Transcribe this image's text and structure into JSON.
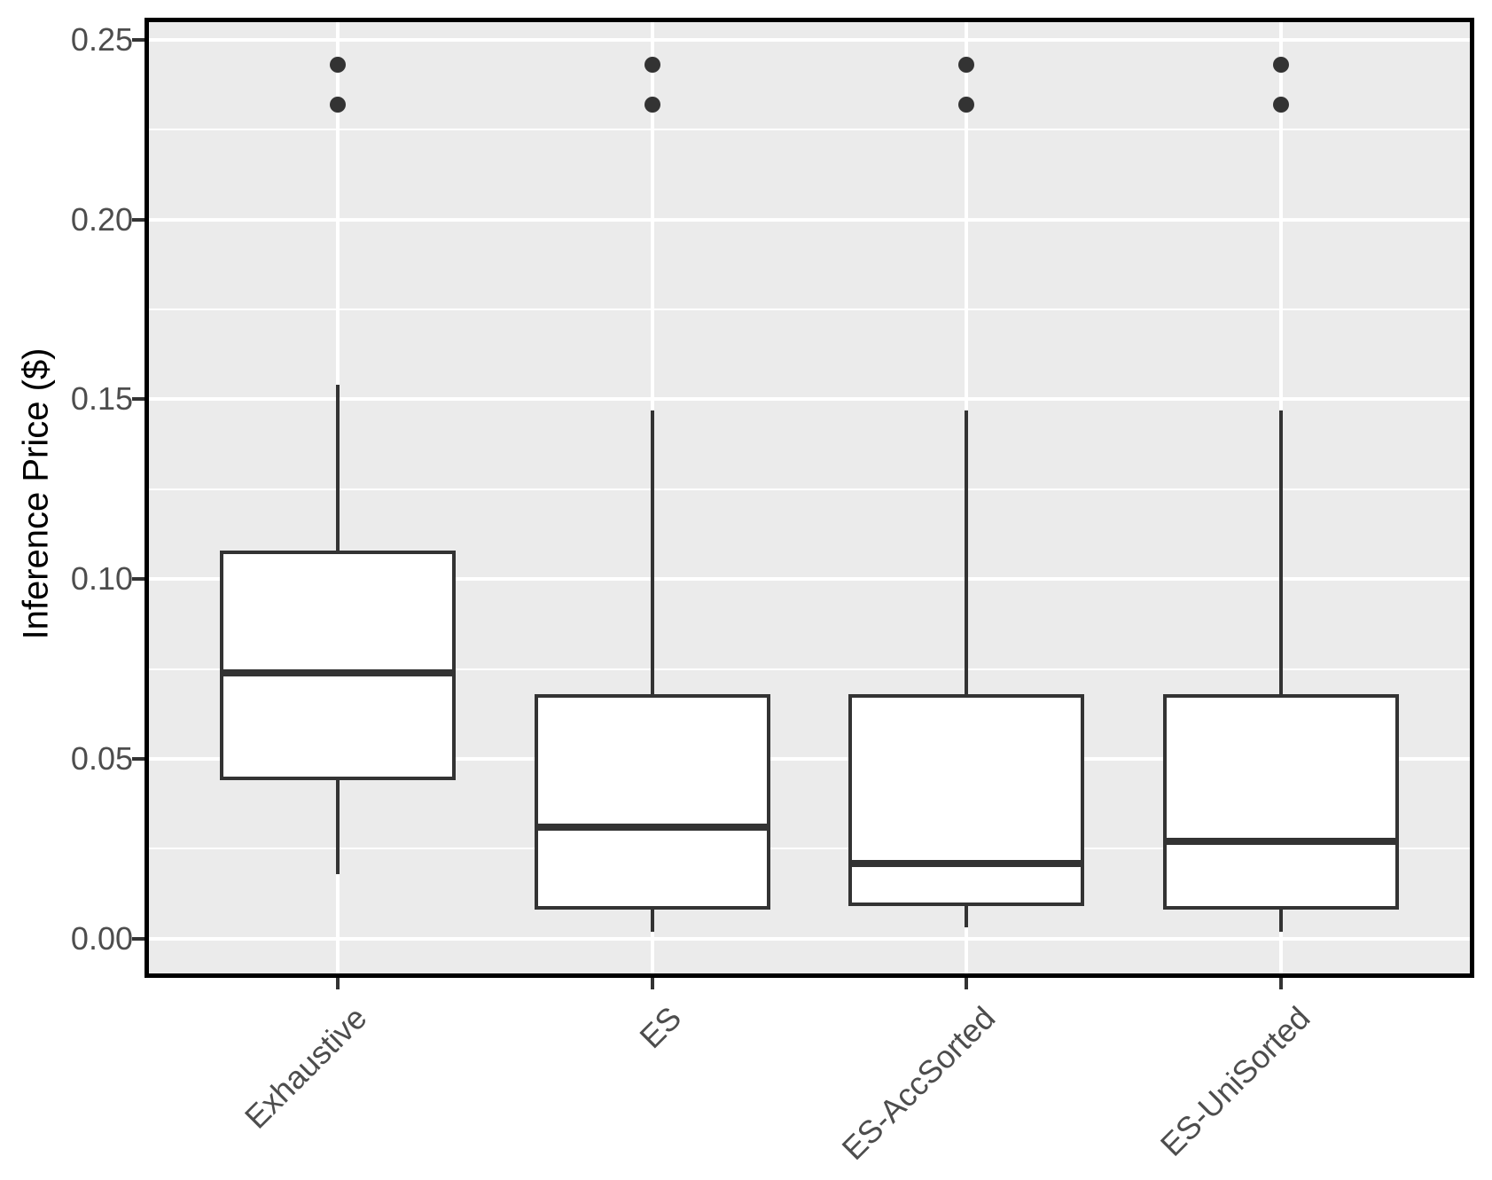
{
  "chart_data": {
    "type": "boxplot",
    "title": "",
    "xlabel": "",
    "ylabel": "Inference Price ($)",
    "categories": [
      "Exhaustive",
      "ES",
      "ES-AccSorted",
      "ES-UniSorted"
    ],
    "series": [
      {
        "name": "Exhaustive",
        "whisker_low": 0.018,
        "q1": 0.044,
        "median": 0.074,
        "q3": 0.108,
        "whisker_high": 0.154,
        "outliers": [
          0.232,
          0.243
        ]
      },
      {
        "name": "ES",
        "whisker_low": 0.002,
        "q1": 0.008,
        "median": 0.031,
        "q3": 0.068,
        "whisker_high": 0.147,
        "outliers": [
          0.232,
          0.243
        ]
      },
      {
        "name": "ES-AccSorted",
        "whisker_low": 0.003,
        "q1": 0.009,
        "median": 0.021,
        "q3": 0.068,
        "whisker_high": 0.147,
        "outliers": [
          0.232,
          0.243
        ]
      },
      {
        "name": "ES-UniSorted",
        "whisker_low": 0.002,
        "q1": 0.008,
        "median": 0.027,
        "q3": 0.068,
        "whisker_high": 0.147,
        "outliers": [
          0.232,
          0.243
        ]
      }
    ],
    "y_ticks": {
      "values": [
        0.0,
        0.05,
        0.1,
        0.15,
        0.2,
        0.25
      ],
      "labels": [
        "0.00",
        "0.05",
        "0.10",
        "0.15",
        "0.20",
        "0.25"
      ]
    },
    "y_minor_ticks": [
      0.025,
      0.075,
      0.125,
      0.175,
      0.225
    ],
    "ylim": [
      -0.0097,
      0.2549
    ],
    "grid": {
      "major": true,
      "minor": true,
      "vertical_major_at_categories": true
    },
    "legend": null
  },
  "style": {
    "panel_bg": "#EBEBEB",
    "grid_color": "#FFFFFF",
    "box_stroke": "#333333",
    "box_fill": "#FFFFFF",
    "median_color": "#333333",
    "outlier_color": "#333333",
    "panel_border_color": "#000000",
    "tick_color": "#333333",
    "tick_label_color": "#4D4D4D",
    "axis_title_color": "#000000"
  }
}
